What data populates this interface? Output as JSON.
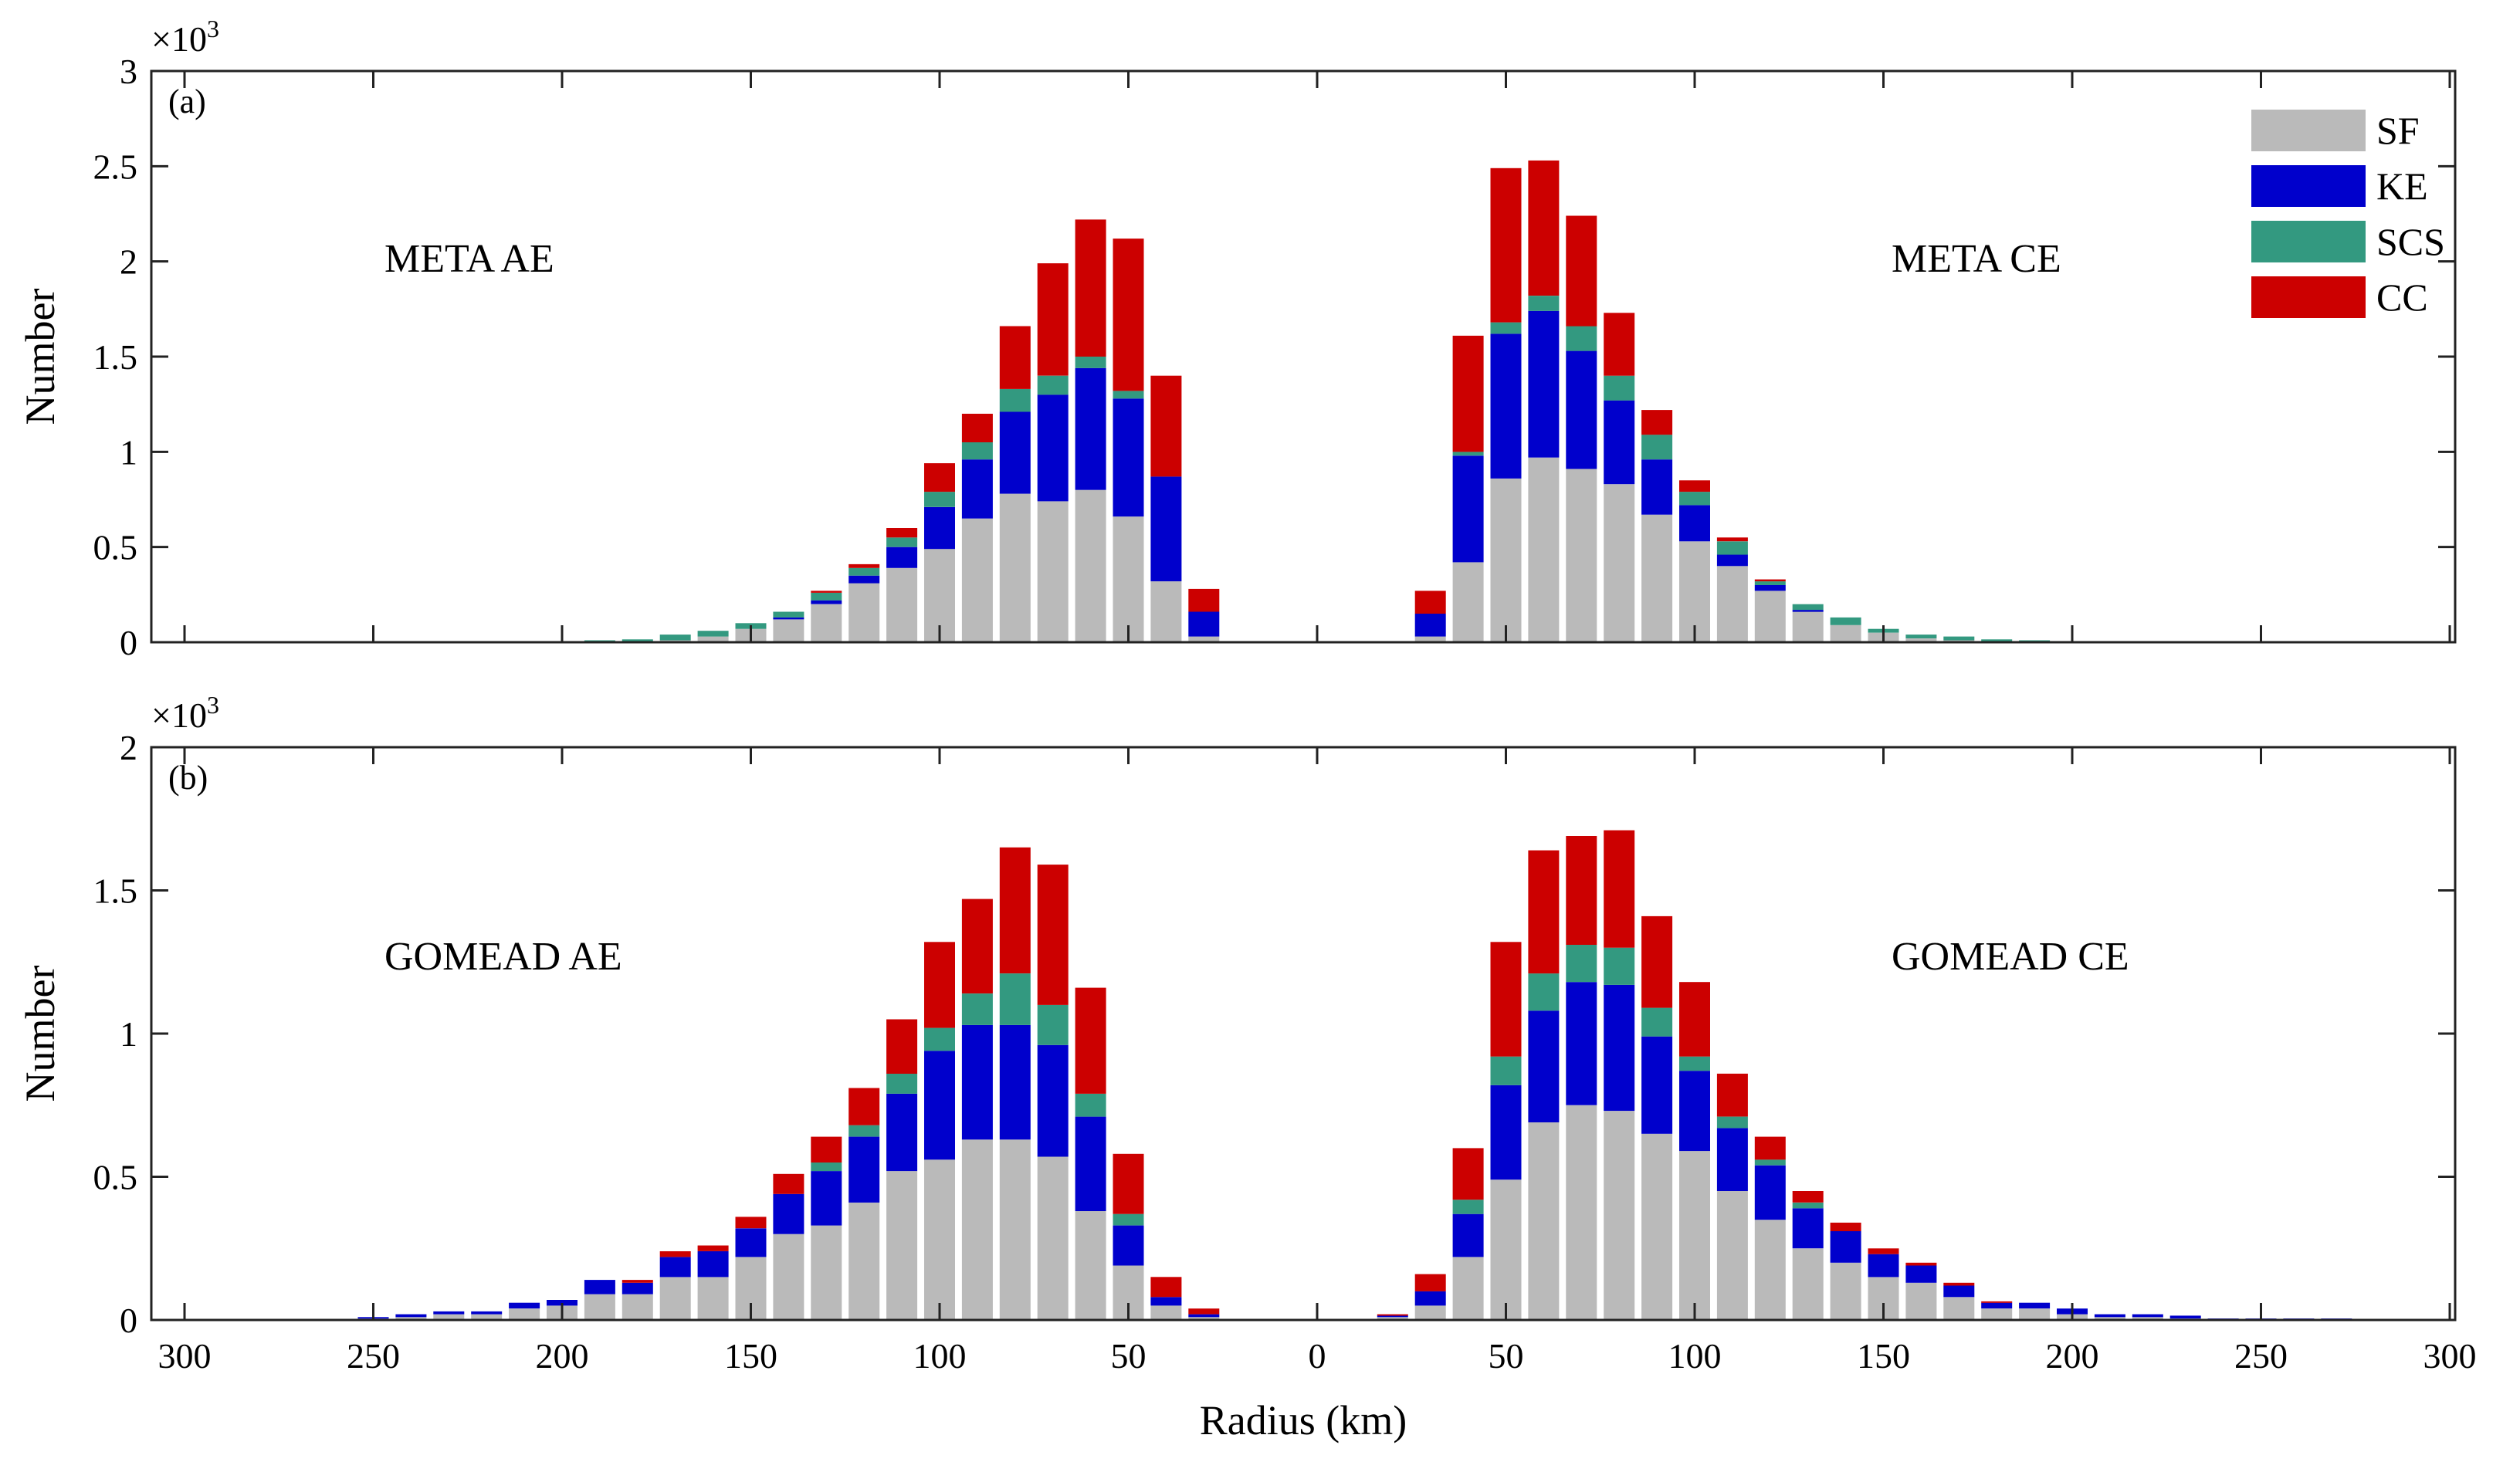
{
  "chart_data": {
    "type": "stacked_bar",
    "xlabel": "Radius (km)",
    "x_ticks": [
      "300",
      "250",
      "200",
      "150",
      "100",
      "50",
      "0",
      "50",
      "100",
      "150",
      "200",
      "250",
      "300"
    ],
    "stack_order": [
      "SF",
      "KE",
      "SCS",
      "CC"
    ],
    "legend": [
      {
        "name": "SF",
        "color": "#bababa"
      },
      {
        "name": "KE",
        "color": "#0000cc"
      },
      {
        "name": "SCS",
        "color": "#339980"
      },
      {
        "name": "CC",
        "color": "#cc0000"
      }
    ],
    "panels": [
      {
        "id": "a",
        "panel_label": "(a)",
        "ylabel": "Number",
        "multiplier": "×10",
        "multiplier_exp": "3",
        "ylim": [
          0,
          3
        ],
        "yticks": [
          "0",
          "0.5",
          "1",
          "1.5",
          "2",
          "2.5",
          "3"
        ],
        "annotations": {
          "left": "META AE",
          "right": "META CE"
        },
        "radii": [
          20,
          30,
          40,
          50,
          60,
          70,
          80,
          90,
          100,
          110,
          120,
          130,
          140,
          150,
          160,
          170,
          180,
          190,
          200,
          210,
          220,
          230,
          240,
          250,
          260,
          270,
          280,
          290,
          300
        ],
        "AE": {
          "SF": [
            0,
            0.03,
            0.32,
            0.66,
            0.8,
            0.74,
            0.78,
            0.65,
            0.49,
            0.39,
            0.31,
            0.2,
            0.12,
            0.07,
            0.03,
            0.01,
            0.005,
            0,
            0,
            0,
            0,
            0,
            0,
            0,
            0,
            0,
            0,
            0,
            0
          ],
          "KE": [
            0,
            0.13,
            0.55,
            0.62,
            0.64,
            0.56,
            0.43,
            0.31,
            0.22,
            0.11,
            0.04,
            0.02,
            0.01,
            0,
            0,
            0,
            0,
            0,
            0,
            0,
            0,
            0,
            0,
            0,
            0,
            0,
            0,
            0,
            0
          ],
          "SCS": [
            0,
            0,
            0,
            0.04,
            0.06,
            0.1,
            0.12,
            0.09,
            0.08,
            0.05,
            0.04,
            0.04,
            0.03,
            0.03,
            0.03,
            0.03,
            0.01,
            0.01,
            0,
            0,
            0,
            0,
            0,
            0,
            0,
            0,
            0,
            0,
            0
          ],
          "CC": [
            0,
            0.12,
            0.53,
            0.8,
            0.72,
            0.59,
            0.33,
            0.15,
            0.15,
            0.05,
            0.02,
            0.01,
            0,
            0,
            0,
            0,
            0,
            0,
            0,
            0,
            0,
            0,
            0,
            0,
            0,
            0,
            0,
            0,
            0
          ]
        },
        "CE": {
          "SF": [
            0,
            0.03,
            0.42,
            0.86,
            0.97,
            0.91,
            0.83,
            0.67,
            0.53,
            0.4,
            0.27,
            0.16,
            0.09,
            0.05,
            0.02,
            0.01,
            0.005,
            0,
            0,
            0,
            0,
            0,
            0,
            0,
            0,
            0,
            0,
            0,
            0
          ],
          "KE": [
            0,
            0.12,
            0.56,
            0.76,
            0.77,
            0.62,
            0.44,
            0.29,
            0.19,
            0.06,
            0.03,
            0.01,
            0,
            0,
            0,
            0,
            0,
            0,
            0,
            0,
            0,
            0,
            0,
            0,
            0,
            0,
            0,
            0,
            0
          ],
          "SCS": [
            0,
            0,
            0.02,
            0.06,
            0.08,
            0.13,
            0.13,
            0.13,
            0.07,
            0.07,
            0.02,
            0.03,
            0.04,
            0.02,
            0.02,
            0.02,
            0.01,
            0.01,
            0,
            0,
            0,
            0,
            0,
            0,
            0,
            0,
            0,
            0,
            0
          ],
          "CC": [
            0,
            0.12,
            0.61,
            0.81,
            0.71,
            0.58,
            0.33,
            0.13,
            0.06,
            0.02,
            0.01,
            0,
            0,
            0,
            0,
            0,
            0,
            0,
            0,
            0,
            0,
            0,
            0,
            0,
            0,
            0,
            0,
            0,
            0
          ]
        }
      },
      {
        "id": "b",
        "panel_label": "(b)",
        "ylabel": "Number",
        "multiplier": "×10",
        "multiplier_exp": "3",
        "ylim": [
          0,
          2
        ],
        "yticks": [
          "0",
          "0.5",
          "1",
          "1.5",
          "2"
        ],
        "annotations": {
          "left": "GOMEAD AE",
          "right": "GOMEAD CE"
        },
        "radii": [
          20,
          30,
          40,
          50,
          60,
          70,
          80,
          90,
          100,
          110,
          120,
          130,
          140,
          150,
          160,
          170,
          180,
          190,
          200,
          210,
          220,
          230,
          240,
          250,
          260,
          270,
          280,
          290,
          300
        ],
        "AE": {
          "SF": [
            0,
            0.01,
            0.05,
            0.19,
            0.38,
            0.57,
            0.63,
            0.63,
            0.56,
            0.52,
            0.41,
            0.33,
            0.3,
            0.22,
            0.15,
            0.15,
            0.09,
            0.09,
            0.05,
            0.04,
            0.02,
            0.02,
            0.01,
            0.005,
            0,
            0,
            0,
            0,
            0
          ],
          "KE": [
            0,
            0.01,
            0.03,
            0.14,
            0.33,
            0.39,
            0.4,
            0.4,
            0.38,
            0.27,
            0.23,
            0.19,
            0.14,
            0.1,
            0.09,
            0.07,
            0.04,
            0.05,
            0.02,
            0.02,
            0.01,
            0.01,
            0.01,
            0.005,
            0,
            0,
            0,
            0,
            0
          ],
          "SCS": [
            0,
            0,
            0,
            0.04,
            0.08,
            0.14,
            0.18,
            0.11,
            0.08,
            0.07,
            0.04,
            0.03,
            0,
            0,
            0,
            0,
            0,
            0,
            0,
            0,
            0,
            0,
            0,
            0,
            0,
            0,
            0,
            0,
            0
          ],
          "CC": [
            0,
            0.02,
            0.07,
            0.21,
            0.37,
            0.49,
            0.44,
            0.33,
            0.3,
            0.19,
            0.13,
            0.09,
            0.07,
            0.04,
            0.02,
            0.02,
            0.01,
            0,
            0,
            0,
            0,
            0,
            0,
            0,
            0,
            0,
            0,
            0,
            0
          ]
        },
        "CE": {
          "SF": [
            0.01,
            0.05,
            0.22,
            0.49,
            0.69,
            0.75,
            0.73,
            0.65,
            0.59,
            0.45,
            0.35,
            0.25,
            0.2,
            0.15,
            0.13,
            0.08,
            0.04,
            0.04,
            0.02,
            0.01,
            0.01,
            0.005,
            0,
            0,
            0,
            0,
            0,
            0,
            0
          ],
          "KE": [
            0.005,
            0.05,
            0.15,
            0.33,
            0.39,
            0.43,
            0.44,
            0.34,
            0.28,
            0.22,
            0.19,
            0.14,
            0.11,
            0.08,
            0.06,
            0.04,
            0.02,
            0.02,
            0.02,
            0.01,
            0.01,
            0.01,
            0.005,
            0.005,
            0.005,
            0.005,
            0,
            0,
            0
          ],
          "SCS": [
            0,
            0,
            0.05,
            0.1,
            0.13,
            0.13,
            0.13,
            0.1,
            0.05,
            0.04,
            0.02,
            0.02,
            0,
            0,
            0,
            0,
            0,
            0,
            0,
            0,
            0,
            0,
            0,
            0,
            0,
            0,
            0,
            0,
            0
          ],
          "CC": [
            0.005,
            0.06,
            0.18,
            0.4,
            0.43,
            0.38,
            0.41,
            0.32,
            0.26,
            0.15,
            0.08,
            0.04,
            0.03,
            0.02,
            0.01,
            0.01,
            0.005,
            0,
            0,
            0,
            0,
            0,
            0,
            0,
            0,
            0,
            0,
            0,
            0
          ]
        }
      }
    ]
  }
}
